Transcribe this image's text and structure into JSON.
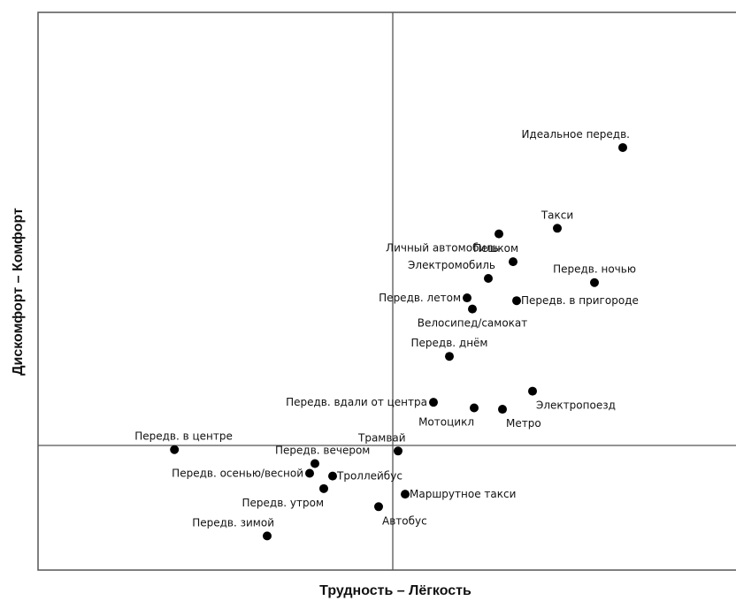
{
  "chart_data": {
    "type": "scatter",
    "title": "",
    "xlabel": "Трудность – Лёгкость",
    "ylabel": "Дискомфорт – Комфорт",
    "xlim": [
      -1.0,
      1.0
    ],
    "ylim": [
      -1.0,
      1.0
    ],
    "grid": false,
    "reference_lines": {
      "x": 0.0,
      "y": 0.0
    },
    "colors": {
      "point": "#000000",
      "frame": "#555555",
      "text": "#111111"
    },
    "points": [
      {
        "label": "Идеальное передв.",
        "x": 0.65,
        "y": 1.07,
        "label_pos": "above-left"
      },
      {
        "label": "Такси",
        "x": 0.465,
        "y": 0.78,
        "label_pos": "above"
      },
      {
        "label": "Личный автомобиль",
        "x": 0.3,
        "y": 0.76,
        "label_pos": "below-left"
      },
      {
        "label": "Пешком",
        "x": 0.34,
        "y": 0.66,
        "label_pos": "above-right"
      },
      {
        "label": "Электромобиль",
        "x": 0.27,
        "y": 0.6,
        "label_pos": "above-left"
      },
      {
        "label": "Передв. ночью",
        "x": 0.57,
        "y": 0.585,
        "label_pos": "above"
      },
      {
        "label": "Передв. летом",
        "x": 0.21,
        "y": 0.53,
        "label_pos": "left"
      },
      {
        "label": "Передв. в пригороде",
        "x": 0.35,
        "y": 0.52,
        "label_pos": "right"
      },
      {
        "label": "Велосипед/самокат",
        "x": 0.225,
        "y": 0.49,
        "label_pos": "below"
      },
      {
        "label": "Передв. днём",
        "x": 0.16,
        "y": 0.32,
        "label_pos": "above"
      },
      {
        "label": "Электропоезд",
        "x": 0.395,
        "y": 0.195,
        "label_pos": "below-right"
      },
      {
        "label": "Передв. вдали от центра",
        "x": 0.115,
        "y": 0.155,
        "label_pos": "left"
      },
      {
        "label": "Мотоцикл",
        "x": 0.23,
        "y": 0.135,
        "label_pos": "below-left"
      },
      {
        "label": "Метро",
        "x": 0.31,
        "y": 0.13,
        "label_pos": "below-right"
      },
      {
        "label": "Передв. в центре",
        "x": -0.617,
        "y": -0.015,
        "label_pos": "above-right"
      },
      {
        "label": "Трамвай",
        "x": 0.015,
        "y": -0.02,
        "label_pos": "above-right"
      },
      {
        "label": "Передв. вечером",
        "x": -0.22,
        "y": -0.065,
        "label_pos": "above-right"
      },
      {
        "label": "Передв. осенью/весной",
        "x": -0.235,
        "y": -0.1,
        "label_pos": "left"
      },
      {
        "label": "Троллейбус",
        "x": -0.17,
        "y": -0.11,
        "label_pos": "right"
      },
      {
        "label": "Передв. утром",
        "x": -0.195,
        "y": -0.155,
        "label_pos": "below-left"
      },
      {
        "label": "Маршрутное такси",
        "x": 0.035,
        "y": -0.175,
        "label_pos": "right"
      },
      {
        "label": "Автобус",
        "x": -0.04,
        "y": -0.22,
        "label_pos": "below-right"
      },
      {
        "label": "Передв. зимой",
        "x": -0.355,
        "y": -0.325,
        "label_pos": "above-left"
      }
    ]
  }
}
